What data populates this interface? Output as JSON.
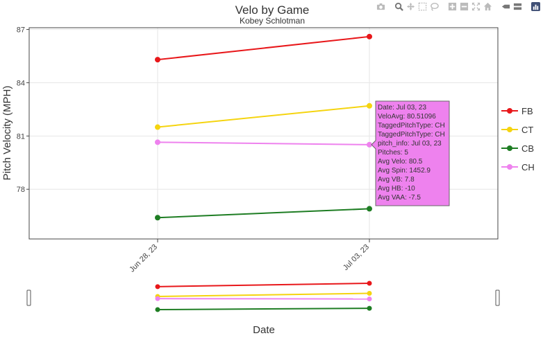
{
  "chart_data": {
    "type": "line",
    "title": "Velo by Game",
    "subtitle": "Kobey Schlotman",
    "xlabel": "Date",
    "ylabel": "Pitch Velocity (MPH)",
    "categories": [
      "Jun 28, 23",
      "Jul 03, 23"
    ],
    "ylim": [
      75.2,
      87.1
    ],
    "yticks": [
      78,
      81,
      84,
      87
    ],
    "grid": true,
    "legend_position": "right",
    "series": [
      {
        "name": "FB",
        "color": "#e8171a",
        "values": [
          85.3,
          86.6
        ]
      },
      {
        "name": "CT",
        "color": "#f5d40f",
        "values": [
          81.5,
          82.7
        ]
      },
      {
        "name": "CB",
        "color": "#1e7d23",
        "values": [
          76.4,
          76.9
        ]
      },
      {
        "name": "CH",
        "color": "#ee82ee",
        "values": [
          80.65,
          80.51096
        ]
      }
    ],
    "tooltip": {
      "series": "CH",
      "point_index": 1,
      "lines": [
        "Date: Jul 03, 23",
        "VeloAvg: 80.51096",
        "TaggedPitchType: CH",
        "TaggedPitchType: CH",
        "pitch_info: Jul 03, 23",
        "Pitches: 5",
        "Avg Velo: 80.5",
        "Avg Spin: 1452.9",
        "Avg VB: 7.8",
        "Avg HB: -10",
        "Avg VAA: -7.5"
      ]
    }
  },
  "modebar": {
    "icons": [
      "camera-icon",
      "zoom-icon",
      "pan-icon",
      "box-select-icon",
      "lasso-icon",
      "zoom-in-icon",
      "zoom-out-icon",
      "autoscale-icon",
      "home-icon",
      "spike-lines-icon",
      "hover-closest-icon",
      "hover-compare-icon",
      "plotly-logo-icon"
    ]
  }
}
